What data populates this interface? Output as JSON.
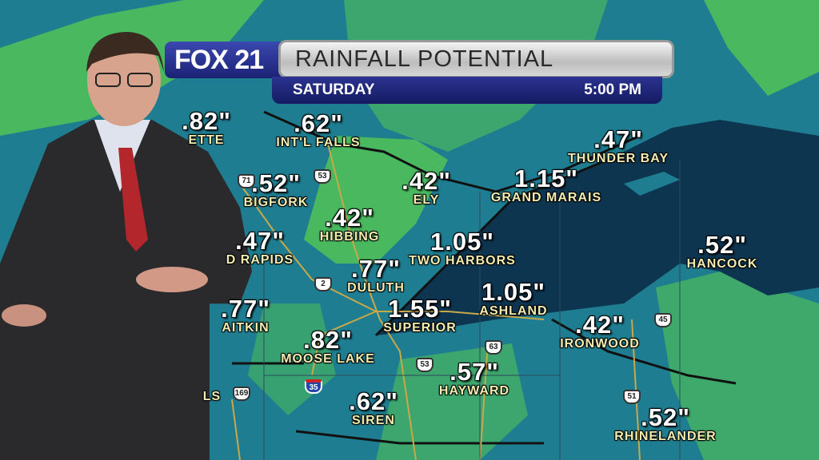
{
  "banner": {
    "station": "FOX 21",
    "title": "RAINFALL POTENTIAL",
    "day": "SATURDAY",
    "time": "5:00 PM"
  },
  "colors": {
    "land": "#1e7d90",
    "rain_light": "#4fbf5a",
    "lake": "#0d3550",
    "banner_blue": "#1b2275",
    "value_text": "#ffffff",
    "city_text": "#f3ecb0"
  },
  "locations": [
    {
      "value": ".82\"",
      "city": "ETTE"
    },
    {
      "value": ".62\"",
      "city": "INT'L FALLS"
    },
    {
      "value": ".52\"",
      "city": "BIGFORK"
    },
    {
      "value": ".42\"",
      "city": "HIBBING"
    },
    {
      "value": ".47\"",
      "city": "D RAPIDS"
    },
    {
      "value": ".42\"",
      "city": "ELY"
    },
    {
      "value": "1.15\"",
      "city": "GRAND MARAIS"
    },
    {
      "value": ".47\"",
      "city": "THUNDER BAY"
    },
    {
      "value": "1.05\"",
      "city": "TWO HARBORS"
    },
    {
      "value": ".77\"",
      "city": "DULUTH"
    },
    {
      "value": "1.05\"",
      "city": "ASHLAND"
    },
    {
      "value": "1.55\"",
      "city": "SUPERIOR"
    },
    {
      "value": ".52\"",
      "city": "HANCOCK"
    },
    {
      "value": ".77\"",
      "city": "AITKIN"
    },
    {
      "value": ".82\"",
      "city": "MOOSE LAKE"
    },
    {
      "value": ".42\"",
      "city": "IRONWOOD"
    },
    {
      "value": ".57\"",
      "city": "HAYWARD"
    },
    {
      "value": ".62\"",
      "city": "SIREN"
    },
    {
      "value": ".52\"",
      "city": "RHINELANDER"
    },
    {
      "value": "",
      "city": "LS"
    }
  ],
  "route_shields": [
    {
      "number": "71",
      "type": "us"
    },
    {
      "number": "53",
      "type": "us"
    },
    {
      "number": "2",
      "type": "us"
    },
    {
      "number": "35",
      "type": "interstate"
    },
    {
      "number": "169",
      "type": "us"
    },
    {
      "number": "53",
      "type": "us"
    },
    {
      "number": "63",
      "type": "us"
    },
    {
      "number": "45",
      "type": "us"
    },
    {
      "number": "51",
      "type": "us"
    }
  ]
}
